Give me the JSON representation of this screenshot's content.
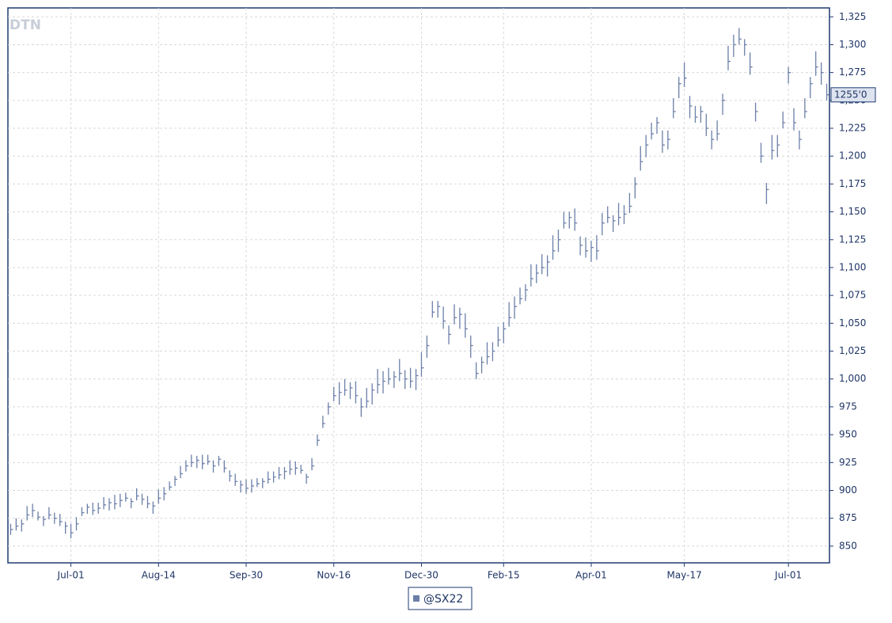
{
  "chart_data": {
    "type": "hlc",
    "logo": "DTN",
    "last_label": "1255'0",
    "color": "#6b7fa8",
    "grid": true,
    "ylim": [
      835,
      1333
    ],
    "yticks": [
      850,
      875,
      900,
      925,
      950,
      975,
      {
        "value": 1000,
        "label": "1,000"
      },
      {
        "value": 1025,
        "label": "1,025"
      },
      {
        "value": 1050,
        "label": "1,050"
      },
      {
        "value": 1075,
        "label": "1,075"
      },
      {
        "value": 1100,
        "label": "1,100"
      },
      {
        "value": 1125,
        "label": "1,125"
      },
      {
        "value": 1150,
        "label": "1,150"
      },
      {
        "value": 1175,
        "label": "1,175"
      },
      {
        "value": 1200,
        "label": "1,200"
      },
      {
        "value": 1225,
        "label": "1,225"
      },
      {
        "value": 1250,
        "label": "1,250"
      },
      {
        "value": 1275,
        "label": "1,275"
      },
      {
        "value": 1300,
        "label": "1,300"
      },
      {
        "value": 1325,
        "label": "1,325"
      }
    ],
    "categories": [
      null,
      null,
      null,
      null,
      null,
      null,
      null,
      null,
      null,
      null,
      null,
      "Jul-01",
      null,
      null,
      null,
      null,
      null,
      null,
      null,
      null,
      null,
      null,
      null,
      null,
      null,
      null,
      null,
      "Aug-14",
      null,
      null,
      null,
      null,
      null,
      null,
      null,
      null,
      null,
      null,
      null,
      null,
      null,
      null,
      null,
      "Sep-30",
      null,
      null,
      null,
      null,
      null,
      null,
      null,
      null,
      null,
      null,
      null,
      null,
      null,
      null,
      null,
      "Nov-16",
      null,
      null,
      null,
      null,
      null,
      null,
      null,
      null,
      null,
      null,
      null,
      null,
      null,
      null,
      null,
      "Dec-30",
      null,
      null,
      null,
      null,
      null,
      null,
      null,
      null,
      null,
      null,
      null,
      null,
      null,
      null,
      "Feb-15",
      null,
      null,
      null,
      null,
      null,
      null,
      null,
      null,
      null,
      null,
      null,
      null,
      null,
      null,
      null,
      "Apr-01",
      null,
      null,
      null,
      null,
      null,
      null,
      null,
      null,
      null,
      null,
      null,
      null,
      null,
      null,
      null,
      null,
      "May-17",
      null,
      null,
      null,
      null,
      null,
      null,
      null,
      null,
      null,
      null,
      null,
      null,
      null,
      null,
      null,
      null,
      null,
      null,
      "Jul-01",
      null,
      null,
      null,
      null,
      null,
      null,
      null
    ],
    "series": [
      {
        "name": "@SX22",
        "color": "#6b7fa8",
        "high": [
          870,
          875,
          874,
          886,
          888,
          881,
          877,
          885,
          880,
          879,
          872,
          870,
          876,
          885,
          888,
          889,
          889,
          894,
          893,
          896,
          897,
          898,
          893,
          902,
          897,
          895,
          890,
          901,
          903,
          908,
          913,
          922,
          927,
          932,
          931,
          932,
          932,
          927,
          931,
          927,
          918,
          915,
          909,
          910,
          910,
          911,
          911,
          917,
          917,
          921,
          921,
          927,
          926,
          923,
          915,
          929,
          950,
          967,
          979,
          993,
          997,
          1000,
          997,
          998,
          983,
          992,
          996,
          1009,
          1007,
          1010,
          1007,
          1018,
          1008,
          1010,
          1009,
          1024,
          1039,
          1070,
          1070,
          1065,
          1048,
          1067,
          1064,
          1059,
          1039,
          1015,
          1020,
          1033,
          1033,
          1047,
          1051,
          1069,
          1074,
          1082,
          1085,
          1103,
          1103,
          1112,
          1111,
          1129,
          1134,
          1150,
          1150,
          1153,
          1128,
          1127,
          1124,
          1129,
          1149,
          1155,
          1147,
          1158,
          1156,
          1167,
          1181,
          1209,
          1219,
          1230,
          1235,
          1223,
          1223,
          1252,
          1271,
          1284,
          1254,
          1245,
          1245,
          1238,
          1223,
          1232,
          1256,
          1299,
          1309,
          1315,
          1305,
          1293,
          1248,
          1212,
          1176,
          1219,
          1219,
          1240,
          1280,
          1243,
          1223,
          1252,
          1271,
          1294,
          1284,
          1265
        ],
        "low": [
          860,
          864,
          863,
          873,
          876,
          873,
          868,
          874,
          870,
          868,
          861,
          857,
          864,
          877,
          879,
          878,
          879,
          883,
          882,
          883,
          885,
          890,
          884,
          891,
          887,
          884,
          879,
          888,
          891,
          900,
          904,
          911,
          917,
          921,
          920,
          919,
          923,
          916,
          922,
          916,
          908,
          904,
          898,
          897,
          898,
          903,
          902,
          906,
          907,
          910,
          910,
          914,
          914,
          915,
          906,
          918,
          940,
          956,
          968,
          980,
          977,
          985,
          982,
          978,
          966,
          974,
          977,
          987,
          987,
          995,
          992,
          998,
          991,
          992,
          990,
          1002,
          1019,
          1055,
          1055,
          1045,
          1031,
          1049,
          1045,
          1037,
          1019,
          1000,
          1005,
          1013,
          1016,
          1029,
          1032,
          1047,
          1054,
          1067,
          1070,
          1083,
          1086,
          1094,
          1092,
          1107,
          1114,
          1135,
          1135,
          1133,
          1111,
          1109,
          1105,
          1107,
          1129,
          1140,
          1132,
          1138,
          1139,
          1149,
          1162,
          1187,
          1199,
          1215,
          1220,
          1203,
          1206,
          1234,
          1252,
          1262,
          1234,
          1230,
          1230,
          1218,
          1206,
          1214,
          1237,
          1277,
          1289,
          1300,
          1290,
          1273,
          1231,
          1194,
          1157,
          1197,
          1199,
          1225,
          1265,
          1223,
          1206,
          1234,
          1252,
          1272,
          1264,
          1250
        ],
        "close": [
          865,
          868,
          870,
          878,
          882,
          876,
          874,
          878,
          875,
          872,
          868,
          862,
          870,
          880,
          885,
          882,
          884,
          887,
          889,
          888,
          891,
          893,
          890,
          895,
          892,
          888,
          886,
          893,
          897,
          903,
          910,
          915,
          922,
          925,
          927,
          924,
          926,
          922,
          928,
          920,
          913,
          908,
          905,
          902,
          904,
          906,
          908,
          910,
          912,
          914,
          917,
          919,
          920,
          918,
          912,
          922,
          945,
          960,
          975,
          985,
          988,
          990,
          992,
          985,
          975,
          980,
          990,
          995,
          998,
          1000,
          1002,
          1005,
          1000,
          998,
          1003,
          1010,
          1030,
          1060,
          1065,
          1052,
          1040,
          1055,
          1058,
          1045,
          1030,
          1005,
          1015,
          1020,
          1025,
          1035,
          1045,
          1055,
          1065,
          1072,
          1080,
          1090,
          1095,
          1100,
          1105,
          1115,
          1125,
          1140,
          1145,
          1140,
          1120,
          1115,
          1118,
          1115,
          1140,
          1145,
          1142,
          1145,
          1148,
          1155,
          1175,
          1195,
          1210,
          1220,
          1230,
          1210,
          1215,
          1240,
          1265,
          1270,
          1245,
          1235,
          1240,
          1225,
          1215,
          1220,
          1250,
          1285,
          1300,
          1305,
          1300,
          1280,
          1240,
          1200,
          1170,
          1205,
          1210,
          1230,
          1275,
          1230,
          1215,
          1240,
          1265,
          1280,
          1275,
          1255
        ]
      }
    ]
  }
}
